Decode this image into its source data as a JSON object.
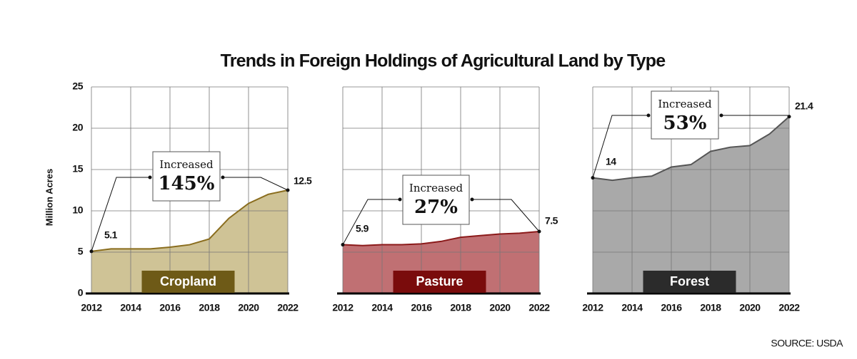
{
  "title": "Trends in Foreign Holdings of Agricultural Land by Type",
  "source": "SOURCE: USDA",
  "chart_data": [
    {
      "type": "area",
      "label": "Cropland",
      "y_label": "Million Acres",
      "color": "#8a6d1e",
      "fill": "#cfc396",
      "label_color": "#6e5a17",
      "x": [
        2012,
        2013,
        2014,
        2015,
        2016,
        2017,
        2018,
        2019,
        2020,
        2021,
        2022
      ],
      "values": [
        5.1,
        5.4,
        5.4,
        5.4,
        5.6,
        5.9,
        6.6,
        9.1,
        10.9,
        12.0,
        12.5
      ],
      "xlim": [
        2012,
        2022
      ],
      "xticks": [
        2012,
        2014,
        2016,
        2018,
        2020,
        2022
      ],
      "ylim": [
        0,
        25
      ],
      "yticks": [
        0,
        5,
        10,
        15,
        20,
        25
      ],
      "grid": true,
      "annotation": {
        "text": "Increased",
        "change": "145%"
      }
    },
    {
      "type": "area",
      "label": "Pasture",
      "color": "#8b1a1a",
      "fill": "#c07073",
      "label_color": "#7a0c0c",
      "x": [
        2012,
        2013,
        2014,
        2015,
        2016,
        2017,
        2018,
        2019,
        2020,
        2021,
        2022
      ],
      "values": [
        5.9,
        5.8,
        5.9,
        5.9,
        6.0,
        6.3,
        6.8,
        7.0,
        7.2,
        7.3,
        7.5
      ],
      "xlim": [
        2012,
        2022
      ],
      "xticks": [
        2012,
        2014,
        2016,
        2018,
        2020,
        2022
      ],
      "ylim": [
        0,
        25
      ],
      "yticks": [
        0,
        5,
        10,
        15,
        20,
        25
      ],
      "grid": true,
      "annotation": {
        "text": "Increased",
        "change": "27%"
      }
    },
    {
      "type": "area",
      "label": "Forest",
      "color": "#555555",
      "fill": "#a9a9a9",
      "label_color": "#2b2b2b",
      "x": [
        2012,
        2013,
        2014,
        2015,
        2016,
        2017,
        2018,
        2019,
        2020,
        2021,
        2022
      ],
      "values": [
        14,
        13.7,
        14.0,
        14.2,
        15.3,
        15.6,
        17.2,
        17.7,
        17.9,
        19.3,
        21.4
      ],
      "xlim": [
        2012,
        2022
      ],
      "xticks": [
        2012,
        2014,
        2016,
        2018,
        2020,
        2022
      ],
      "ylim": [
        0,
        25
      ],
      "yticks": [
        0,
        5,
        10,
        15,
        20,
        25
      ],
      "grid": true,
      "annotation": {
        "text": "Increased",
        "change": "53%"
      }
    }
  ]
}
